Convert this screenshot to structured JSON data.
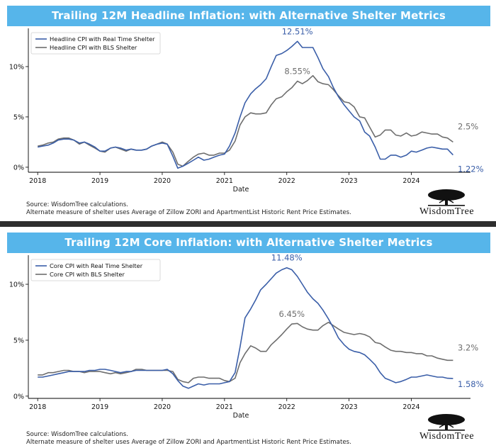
{
  "chart_data": [
    {
      "type": "line",
      "title": "Trailing 12M Headline Inflation: with Alternative Shelter Metrics",
      "xlabel": "Date",
      "ylabel": "",
      "xlim": [
        2017.85,
        2024.95
      ],
      "ylim": [
        -0.5,
        13.8
      ],
      "x_ticks": [
        "2018",
        "2019",
        "2020",
        "2021",
        "2022",
        "2023",
        "2024"
      ],
      "y_ticks": [
        {
          "value": 0,
          "label": "0%"
        },
        {
          "value": 5,
          "label": "5%"
        },
        {
          "value": 10,
          "label": "10%"
        }
      ],
      "legend_position": "top-left",
      "series": [
        {
          "name": "Headline CPI with Real Time Shelter",
          "color": "#3a5ea8",
          "x": [
            2018.0,
            2018.08,
            2018.17,
            2018.25,
            2018.33,
            2018.42,
            2018.5,
            2018.58,
            2018.67,
            2018.75,
            2018.83,
            2018.92,
            2019.0,
            2019.08,
            2019.17,
            2019.25,
            2019.33,
            2019.42,
            2019.5,
            2019.58,
            2019.67,
            2019.75,
            2019.83,
            2019.92,
            2020.0,
            2020.08,
            2020.17,
            2020.25,
            2020.33,
            2020.42,
            2020.5,
            2020.58,
            2020.67,
            2020.75,
            2020.83,
            2020.92,
            2021.0,
            2021.08,
            2021.17,
            2021.25,
            2021.33,
            2021.42,
            2021.5,
            2021.58,
            2021.67,
            2021.75,
            2021.83,
            2021.92,
            2022.0,
            2022.08,
            2022.17,
            2022.25,
            2022.33,
            2022.42,
            2022.5,
            2022.58,
            2022.67,
            2022.75,
            2022.83,
            2022.92,
            2023.0,
            2023.08,
            2023.17,
            2023.25,
            2023.33,
            2023.42,
            2023.5,
            2023.58,
            2023.67,
            2023.75,
            2023.83,
            2023.92,
            2024.0,
            2024.08,
            2024.17,
            2024.25,
            2024.33,
            2024.42,
            2024.5,
            2024.58,
            2024.67
          ],
          "values": [
            2.0,
            2.1,
            2.2,
            2.4,
            2.7,
            2.8,
            2.8,
            2.7,
            2.4,
            2.5,
            2.3,
            2.0,
            1.6,
            1.6,
            1.9,
            2.0,
            1.9,
            1.7,
            1.8,
            1.7,
            1.7,
            1.8,
            2.1,
            2.3,
            2.4,
            2.3,
            1.1,
            -0.1,
            0.1,
            0.4,
            0.7,
            1.0,
            0.7,
            0.8,
            1.0,
            1.2,
            1.3,
            2.1,
            3.4,
            5.0,
            6.4,
            7.3,
            7.8,
            8.2,
            8.8,
            10.0,
            11.1,
            11.3,
            11.6,
            12.0,
            12.51,
            11.9,
            11.9,
            11.9,
            10.9,
            9.8,
            9.0,
            7.9,
            7.0,
            6.2,
            5.6,
            5.0,
            4.6,
            3.5,
            3.1,
            2.0,
            0.8,
            0.8,
            1.2,
            1.2,
            1.0,
            1.2,
            1.6,
            1.5,
            1.7,
            1.9,
            2.0,
            1.9,
            1.8,
            1.8,
            1.22
          ]
        },
        {
          "name": "Headline CPI with BLS Shelter",
          "color": "#6e6e6e",
          "x": [
            2018.0,
            2018.08,
            2018.17,
            2018.25,
            2018.33,
            2018.42,
            2018.5,
            2018.58,
            2018.67,
            2018.75,
            2018.83,
            2018.92,
            2019.0,
            2019.08,
            2019.17,
            2019.25,
            2019.33,
            2019.42,
            2019.5,
            2019.58,
            2019.67,
            2019.75,
            2019.83,
            2019.92,
            2020.0,
            2020.08,
            2020.17,
            2020.25,
            2020.33,
            2020.42,
            2020.5,
            2020.58,
            2020.67,
            2020.75,
            2020.83,
            2020.92,
            2021.0,
            2021.08,
            2021.17,
            2021.25,
            2021.33,
            2021.42,
            2021.5,
            2021.58,
            2021.67,
            2021.75,
            2021.83,
            2021.92,
            2022.0,
            2022.08,
            2022.17,
            2022.25,
            2022.33,
            2022.42,
            2022.5,
            2022.58,
            2022.67,
            2022.75,
            2022.83,
            2022.92,
            2023.0,
            2023.08,
            2023.17,
            2023.25,
            2023.33,
            2023.42,
            2023.5,
            2023.58,
            2023.67,
            2023.75,
            2023.83,
            2023.92,
            2024.0,
            2024.08,
            2024.17,
            2024.25,
            2024.33,
            2024.42,
            2024.5,
            2024.58,
            2024.67
          ],
          "values": [
            2.1,
            2.2,
            2.4,
            2.5,
            2.8,
            2.9,
            2.9,
            2.7,
            2.3,
            2.5,
            2.2,
            1.9,
            1.6,
            1.5,
            1.9,
            2.0,
            1.8,
            1.6,
            1.8,
            1.7,
            1.7,
            1.8,
            2.1,
            2.3,
            2.5,
            2.3,
            1.5,
            0.3,
            0.1,
            0.6,
            1.0,
            1.3,
            1.4,
            1.2,
            1.2,
            1.4,
            1.4,
            1.7,
            2.6,
            4.2,
            5.0,
            5.4,
            5.3,
            5.3,
            5.4,
            6.2,
            6.8,
            7.0,
            7.5,
            7.9,
            8.55,
            8.3,
            8.6,
            9.1,
            8.5,
            8.3,
            8.2,
            7.7,
            7.1,
            6.5,
            6.4,
            6.0,
            5.0,
            4.9,
            4.0,
            3.0,
            3.2,
            3.7,
            3.7,
            3.2,
            3.1,
            3.4,
            3.1,
            3.2,
            3.5,
            3.4,
            3.3,
            3.3,
            3.0,
            2.9,
            2.5
          ]
        }
      ],
      "annotations": [
        {
          "text": "12.51%",
          "x": 2022.17,
          "y": 12.51,
          "color": "#3a5ea8"
        },
        {
          "text": "8.55%",
          "x": 2022.17,
          "y": 8.55,
          "color": "#6e6e6e"
        },
        {
          "text": "2.5%",
          "x": 2024.67,
          "y": 2.5,
          "color": "#6e6e6e"
        },
        {
          "text": "1.22%",
          "x": 2024.67,
          "y": 1.22,
          "color": "#3a5ea8"
        }
      ],
      "footnotes": [
        "Source: WisdomTree calculations.",
        "Alternate measure of shelter uses Average of Zillow ZORI and ApartmentList Historic Rent Price Estimates."
      ],
      "logo": "WisdomTree"
    },
    {
      "type": "line",
      "title": "Trailing 12M Core Inflation: with Alternative Shelter Metrics",
      "xlabel": "Date",
      "ylabel": "",
      "xlim": [
        2017.85,
        2024.95
      ],
      "ylim": [
        -0.2,
        12.6
      ],
      "x_ticks": [
        "2018",
        "2019",
        "2020",
        "2021",
        "2022",
        "2023",
        "2024"
      ],
      "y_ticks": [
        {
          "value": 0,
          "label": "0%"
        },
        {
          "value": 5,
          "label": "5%"
        },
        {
          "value": 10,
          "label": "10%"
        }
      ],
      "legend_position": "top-left",
      "series": [
        {
          "name": "Core CPI with Real Time Shelter",
          "color": "#3a5ea8",
          "x": [
            2018.0,
            2018.08,
            2018.17,
            2018.25,
            2018.33,
            2018.42,
            2018.5,
            2018.58,
            2018.67,
            2018.75,
            2018.83,
            2018.92,
            2019.0,
            2019.08,
            2019.17,
            2019.25,
            2019.33,
            2019.42,
            2019.5,
            2019.58,
            2019.67,
            2019.75,
            2019.83,
            2019.92,
            2020.0,
            2020.08,
            2020.17,
            2020.25,
            2020.33,
            2020.42,
            2020.5,
            2020.58,
            2020.67,
            2020.75,
            2020.83,
            2020.92,
            2021.0,
            2021.08,
            2021.17,
            2021.25,
            2021.33,
            2021.42,
            2021.5,
            2021.58,
            2021.67,
            2021.75,
            2021.83,
            2021.92,
            2022.0,
            2022.08,
            2022.17,
            2022.25,
            2022.33,
            2022.42,
            2022.5,
            2022.58,
            2022.67,
            2022.75,
            2022.83,
            2022.92,
            2023.0,
            2023.08,
            2023.17,
            2023.25,
            2023.33,
            2023.42,
            2023.5,
            2023.58,
            2023.67,
            2023.75,
            2023.83,
            2023.92,
            2024.0,
            2024.08,
            2024.17,
            2024.25,
            2024.33,
            2024.42,
            2024.5,
            2024.58,
            2024.67
          ],
          "values": [
            1.7,
            1.7,
            1.8,
            1.9,
            2.0,
            2.1,
            2.2,
            2.2,
            2.2,
            2.2,
            2.3,
            2.3,
            2.4,
            2.4,
            2.3,
            2.2,
            2.1,
            2.2,
            2.2,
            2.3,
            2.3,
            2.3,
            2.3,
            2.3,
            2.3,
            2.4,
            2.0,
            1.4,
            0.9,
            0.7,
            0.9,
            1.1,
            1.0,
            1.1,
            1.1,
            1.1,
            1.2,
            1.3,
            2.1,
            4.4,
            7.0,
            7.8,
            8.6,
            9.5,
            10.0,
            10.5,
            11.0,
            11.3,
            11.48,
            11.3,
            10.7,
            10.0,
            9.3,
            8.7,
            8.3,
            7.7,
            6.9,
            6.1,
            5.2,
            4.6,
            4.2,
            4.0,
            3.9,
            3.7,
            3.3,
            2.8,
            2.1,
            1.6,
            1.4,
            1.2,
            1.3,
            1.5,
            1.7,
            1.7,
            1.8,
            1.9,
            1.8,
            1.7,
            1.7,
            1.6,
            1.58
          ]
        },
        {
          "name": "Core CPI with BLS Shelter",
          "color": "#6e6e6e",
          "x": [
            2018.0,
            2018.08,
            2018.17,
            2018.25,
            2018.33,
            2018.42,
            2018.5,
            2018.58,
            2018.67,
            2018.75,
            2018.83,
            2018.92,
            2019.0,
            2019.08,
            2019.17,
            2019.25,
            2019.33,
            2019.42,
            2019.5,
            2019.58,
            2019.67,
            2019.75,
            2019.83,
            2019.92,
            2020.0,
            2020.08,
            2020.17,
            2020.25,
            2020.33,
            2020.42,
            2020.5,
            2020.58,
            2020.67,
            2020.75,
            2020.83,
            2020.92,
            2021.0,
            2021.08,
            2021.17,
            2021.25,
            2021.33,
            2021.42,
            2021.5,
            2021.58,
            2021.67,
            2021.75,
            2021.83,
            2021.92,
            2022.0,
            2022.08,
            2022.17,
            2022.25,
            2022.33,
            2022.42,
            2022.5,
            2022.58,
            2022.67,
            2022.75,
            2022.83,
            2022.92,
            2023.0,
            2023.08,
            2023.17,
            2023.25,
            2023.33,
            2023.42,
            2023.5,
            2023.58,
            2023.67,
            2023.75,
            2023.83,
            2023.92,
            2024.0,
            2024.08,
            2024.17,
            2024.25,
            2024.33,
            2024.42,
            2024.5,
            2024.58,
            2024.67
          ],
          "values": [
            1.9,
            1.9,
            2.1,
            2.1,
            2.2,
            2.3,
            2.3,
            2.2,
            2.2,
            2.1,
            2.2,
            2.2,
            2.2,
            2.1,
            2.0,
            2.1,
            2.0,
            2.1,
            2.2,
            2.4,
            2.4,
            2.3,
            2.3,
            2.3,
            2.3,
            2.3,
            2.2,
            1.5,
            1.3,
            1.2,
            1.6,
            1.7,
            1.7,
            1.6,
            1.6,
            1.6,
            1.4,
            1.3,
            1.6,
            3.0,
            3.8,
            4.5,
            4.3,
            4.0,
            4.0,
            4.6,
            5.0,
            5.5,
            6.0,
            6.45,
            6.5,
            6.2,
            6.0,
            5.9,
            5.9,
            6.3,
            6.6,
            6.3,
            6.0,
            5.7,
            5.6,
            5.5,
            5.6,
            5.5,
            5.3,
            4.8,
            4.7,
            4.4,
            4.1,
            4.0,
            4.0,
            3.9,
            3.9,
            3.8,
            3.8,
            3.6,
            3.6,
            3.4,
            3.3,
            3.2,
            3.2
          ]
        }
      ],
      "annotations": [
        {
          "text": "11.48%",
          "x": 2022.0,
          "y": 11.48,
          "color": "#3a5ea8"
        },
        {
          "text": "6.45%",
          "x": 2022.08,
          "y": 6.45,
          "color": "#6e6e6e"
        },
        {
          "text": "3.2%",
          "x": 2024.67,
          "y": 3.2,
          "color": "#6e6e6e"
        },
        {
          "text": "1.58%",
          "x": 2024.67,
          "y": 1.58,
          "color": "#3a5ea8"
        }
      ],
      "footnotes": [
        "Source: WisdomTree calculations.",
        "Alternate measure of shelter uses Average of Zillow ZORI and ApartmentList Historic Rent Price Estimates."
      ],
      "logo": "WisdomTree"
    }
  ]
}
